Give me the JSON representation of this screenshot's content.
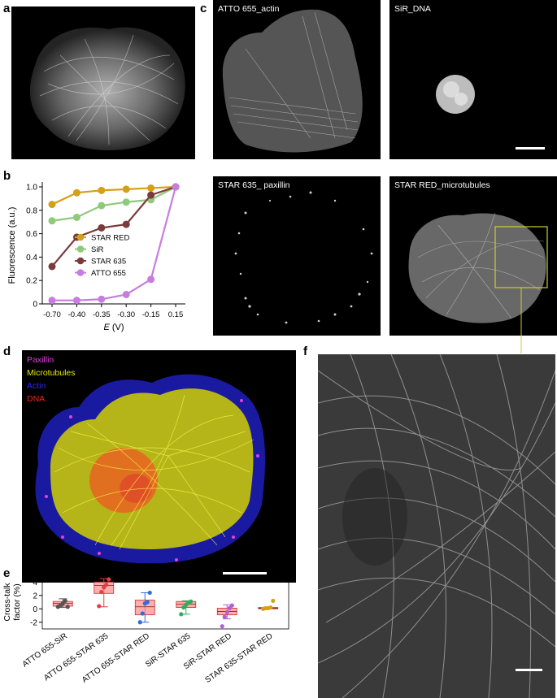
{
  "panels": {
    "a": "a",
    "b": "b",
    "c": "c",
    "d": "d",
    "e": "e",
    "f": "f"
  },
  "images": {
    "c_labels": [
      "ATTO 655_actin",
      "SiR_DNA",
      "STAR 635_ paxillin",
      "STAR RED_microtubules"
    ],
    "d_legend": [
      {
        "label": "Paxillin",
        "color": "#e040e0"
      },
      {
        "label": "Microtubules",
        "color": "#e6e600"
      },
      {
        "label": "Actin",
        "color": "#2a2aff"
      },
      {
        "label": "DNA",
        "color": "#ff2020"
      }
    ],
    "zoom_box_color": "#cccc33"
  },
  "chart_data": [
    {
      "type": "line",
      "panel": "b",
      "x": [
        "-0.70",
        "-0.40",
        "-0.35",
        "-0.30",
        "-0.15",
        "0.15"
      ],
      "xlabel": "E (V)",
      "ylabel": "Fluorescence (a.u.)",
      "ylim": [
        0,
        1.0
      ],
      "yticks": [
        "0",
        "0.2",
        "0.4",
        "0.6",
        "0.8",
        "1.0"
      ],
      "legend_position": "bottom-right",
      "series": [
        {
          "name": "STAR RED",
          "color": "#d4a017",
          "values": [
            0.85,
            0.95,
            0.97,
            0.98,
            0.99,
            1.0
          ]
        },
        {
          "name": "SiR",
          "color": "#8fc97a",
          "values": [
            0.71,
            0.74,
            0.84,
            0.87,
            0.89,
            1.0
          ]
        },
        {
          "name": "STAR 635",
          "color": "#7a3b3b",
          "values": [
            0.32,
            0.57,
            0.65,
            0.68,
            0.93,
            1.0
          ]
        },
        {
          "name": "ATTO 655",
          "color": "#c77ddf",
          "values": [
            0.03,
            0.03,
            0.04,
            0.08,
            0.21,
            1.0
          ]
        }
      ]
    },
    {
      "type": "box",
      "panel": "e",
      "ylabel": "Cross-talk factor (%)",
      "ylim": [
        -3,
        5
      ],
      "yticks": [
        "-2",
        "0",
        "2",
        "4"
      ],
      "categories": [
        "ATTO 655-SiR",
        "ATTO 655-STAR 635",
        "ATTO 655-STAR RED",
        "SiR-STAR 635",
        "SiR-STAR RED",
        "STAR 635-STAR RED"
      ],
      "series": [
        {
          "color": "#555555",
          "fill": "#ff8a8a",
          "q1": 0.4,
          "median": 0.8,
          "q3": 1.1,
          "min": 0.2,
          "max": 1.5,
          "points": [
            0.3,
            0.5,
            0.8,
            1.2,
            0.3
          ]
        },
        {
          "color": "#e04040",
          "fill": "#ff8a8a",
          "q1": 2.3,
          "median": 3.5,
          "q3": 4.0,
          "min": 0.3,
          "max": 4.5,
          "points": [
            0.4,
            2.5,
            3.2,
            3.6,
            4.4
          ]
        },
        {
          "color": "#2f6fd6",
          "fill": "#ff8a8a",
          "q1": -0.9,
          "median": 0.3,
          "q3": 1.3,
          "min": -2.0,
          "max": 2.4,
          "points": [
            -2.0,
            -0.7,
            0.8,
            1.0,
            2.4
          ]
        },
        {
          "color": "#2fae5f",
          "fill": "#ff8a8a",
          "q1": 0.2,
          "median": 0.7,
          "q3": 1.1,
          "min": -0.8,
          "max": 1.2,
          "points": [
            -0.8,
            0.2,
            0.6,
            0.9,
            1.1
          ]
        },
        {
          "color": "#b060d0",
          "fill": "#ff8a8a",
          "q1": -0.9,
          "median": -0.4,
          "q3": 0.1,
          "min": -1.5,
          "max": 0.6,
          "points": [
            -2.6,
            -1.2,
            -0.5,
            0.1,
            0.5
          ]
        },
        {
          "color": "#d4a017",
          "fill": "#ff8a8a",
          "q1": 0.0,
          "median": 0.1,
          "q3": 0.2,
          "min": 0.0,
          "max": 0.2,
          "points": [
            0.0,
            0.1,
            0.1,
            0.2,
            1.2
          ]
        }
      ]
    }
  ]
}
